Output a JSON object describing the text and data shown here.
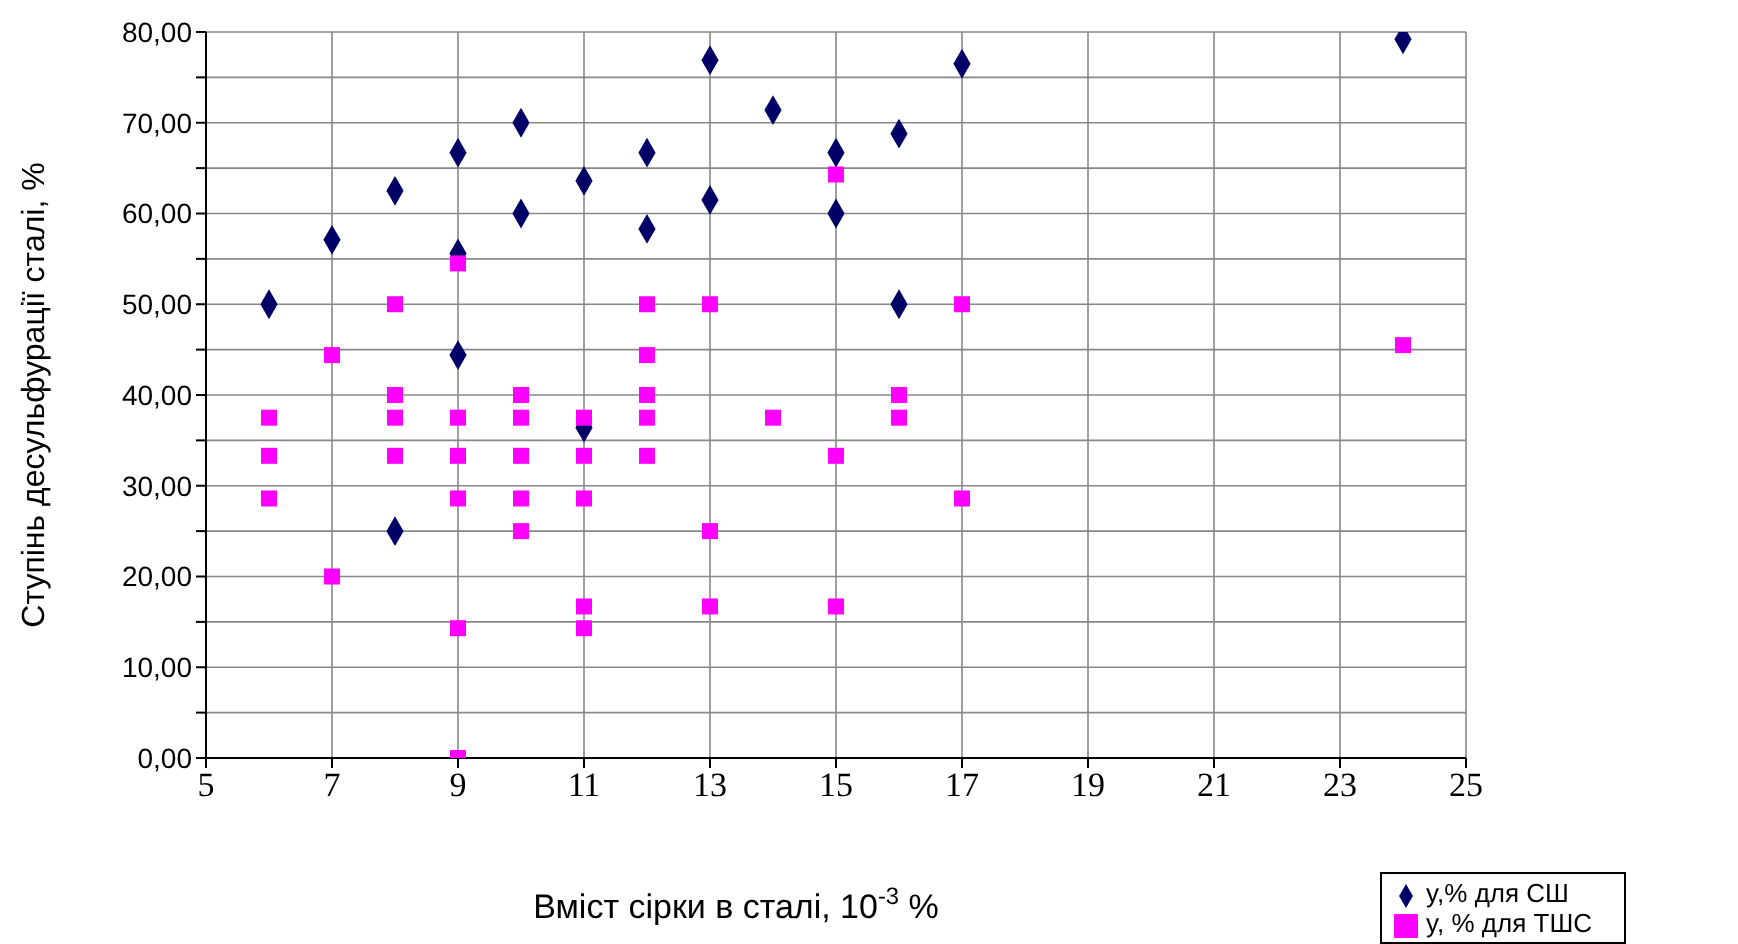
{
  "chart_data": {
    "type": "scatter",
    "xlabel": "Вміст сірки в сталі, 10$^{-3}$ %",
    "ylabel": "Ступінь десульфурації сталі, %",
    "xlim": [
      5,
      25
    ],
    "xticks": [
      5,
      7,
      9,
      11,
      13,
      15,
      17,
      19,
      21,
      23,
      25
    ],
    "ylim": [
      0,
      80
    ],
    "yticks": [
      {
        "value": 0,
        "label": "0,00"
      },
      {
        "value": 5,
        "label": null
      },
      {
        "value": 10,
        "label": "10,00"
      },
      {
        "value": 15,
        "label": null
      },
      {
        "value": 20,
        "label": "20,00"
      },
      {
        "value": 25,
        "label": null
      },
      {
        "value": 30,
        "label": "30,00"
      },
      {
        "value": 35,
        "label": null
      },
      {
        "value": 40,
        "label": "40,00"
      },
      {
        "value": 45,
        "label": null
      },
      {
        "value": 50,
        "label": "50,00"
      },
      {
        "value": 55,
        "label": null
      },
      {
        "value": 60,
        "label": "60,00"
      },
      {
        "value": 65,
        "label": null
      },
      {
        "value": 70,
        "label": "70,00"
      },
      {
        "value": 75,
        "label": null
      },
      {
        "value": 80,
        "label": "80,00"
      }
    ],
    "grid": true,
    "legend": "bottom right",
    "series": [
      {
        "name": "y,% для СШ",
        "color": "#000066",
        "marker": "diamond",
        "x": [
          6,
          7,
          8,
          8,
          9,
          9,
          9,
          10,
          10,
          11,
          11,
          12,
          12,
          13,
          13,
          14,
          15,
          15,
          16,
          16,
          17,
          24
        ],
        "values": [
          50,
          57.1,
          62.5,
          25,
          66.7,
          55.6,
          44.4,
          70,
          60,
          63.6,
          36.4,
          66.7,
          58.3,
          76.9,
          61.5,
          71.4,
          66.7,
          60,
          68.8,
          50,
          76.5,
          79.2
        ]
      },
      {
        "name": "y, % для ТШС",
        "color": "#ff00ff",
        "marker": "square",
        "x": [
          6,
          6,
          6,
          7,
          7,
          8,
          8,
          8,
          8,
          9,
          9,
          9,
          9,
          9,
          9,
          10,
          10,
          10,
          10,
          10,
          11,
          11,
          11,
          11,
          11,
          12,
          12,
          12,
          12,
          12,
          13,
          13,
          13,
          14,
          15,
          15,
          15,
          16,
          16,
          17,
          17,
          24
        ],
        "values": [
          37.5,
          33.3,
          28.6,
          44.4,
          20,
          50,
          40,
          37.5,
          33.3,
          54.5,
          37.5,
          33.3,
          28.6,
          14.3,
          0,
          40,
          37.5,
          33.3,
          28.6,
          25,
          37.5,
          33.3,
          28.6,
          16.7,
          14.3,
          50,
          44.4,
          40,
          37.5,
          33.3,
          50,
          25,
          16.7,
          37.5,
          64.3,
          33.3,
          16.7,
          40,
          37.5,
          50,
          28.6,
          45.5
        ]
      }
    ]
  }
}
